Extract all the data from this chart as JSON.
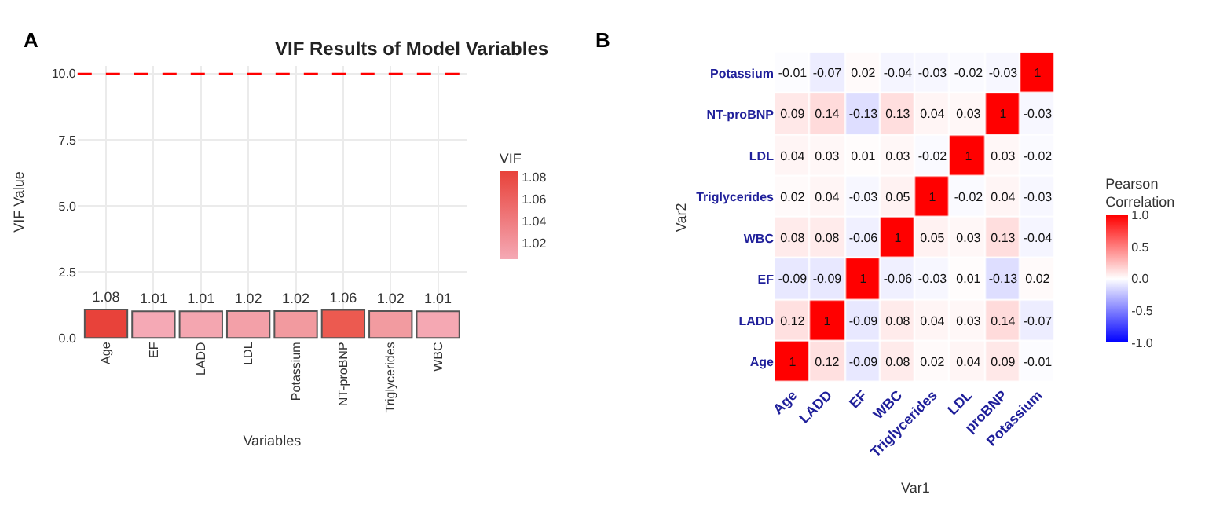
{
  "chart_data": [
    {
      "type": "bar",
      "title": "VIF Results of Model Variables",
      "xlabel": "Variables",
      "ylabel": "VIF Value",
      "clabel": "VIF",
      "categories": [
        "Age",
        "EF",
        "LADD",
        "LDL",
        "Potassium",
        "NT-proBNP",
        "Triglycerides",
        "WBC"
      ],
      "values": [
        1.08,
        1.01,
        1.01,
        1.02,
        1.02,
        1.06,
        1.02,
        1.01
      ],
      "colors": [
        "#e8423a",
        "#f5a9b5",
        "#f4a6b0",
        "#f3a0a8",
        "#f29a9f",
        "#ec5a50",
        "#f29ba0",
        "#f5a8b3"
      ],
      "clim": [
        1.005,
        1.085
      ],
      "cticks": [
        1.02,
        1.04,
        1.06,
        1.08
      ],
      "ylim": [
        0,
        10.3
      ],
      "yticks": [
        {
          "value": 0,
          "label": "0.0"
        },
        {
          "value": 2.5,
          "label": "2.5"
        },
        {
          "value": 5,
          "label": "5.0"
        },
        {
          "value": 7.5,
          "label": "7.5"
        },
        {
          "value": 10,
          "label": "10.0"
        }
      ],
      "ref_lines": [
        {
          "axis": "y",
          "value": 10,
          "color": "#ff0000",
          "line_style": "dashed"
        }
      ],
      "data_labels": true,
      "grid": true,
      "legend": false,
      "annotations": [
        "A"
      ]
    },
    {
      "type": "heatmap",
      "xlabel": "Var1",
      "ylabel": "Var2",
      "clabel": "Pearson Correlation",
      "categories": [
        "Age",
        "LADD",
        "EF",
        "WBC",
        "Triglycerides",
        "LDL",
        "proBNP",
        "Potassium"
      ],
      "y_categories": [
        "Potassium",
        "NT-proBNP",
        "LDL",
        "Triglycerides",
        "WBC",
        "EF",
        "LADD",
        "Age"
      ],
      "cells": [
        [
          -0.01,
          -0.07,
          0.02,
          -0.04,
          -0.03,
          -0.02,
          -0.03,
          1
        ],
        [
          0.09,
          0.14,
          -0.13,
          0.13,
          0.04,
          0.03,
          1,
          -0.03
        ],
        [
          0.04,
          0.03,
          0.01,
          0.03,
          -0.02,
          1,
          0.03,
          -0.02
        ],
        [
          0.02,
          0.04,
          -0.03,
          0.05,
          1,
          -0.02,
          0.04,
          -0.03
        ],
        [
          0.08,
          0.08,
          -0.06,
          1,
          0.05,
          0.03,
          0.13,
          -0.04
        ],
        [
          -0.09,
          -0.09,
          1,
          -0.06,
          -0.03,
          0.01,
          -0.13,
          0.02
        ],
        [
          0.12,
          1,
          -0.09,
          0.08,
          0.04,
          0.03,
          0.14,
          -0.07
        ],
        [
          1,
          0.12,
          -0.09,
          0.08,
          0.02,
          0.04,
          0.09,
          -0.01
        ]
      ],
      "colors": [
        "#0000ff",
        "#ffffff",
        "#ff0000"
      ],
      "clim": [
        -1,
        1
      ],
      "cticks": [
        {
          "value": -1,
          "label": "-1.0"
        },
        {
          "value": -0.5,
          "label": "-0.5"
        },
        {
          "value": 0,
          "label": "0.0"
        },
        {
          "value": 0.5,
          "label": "0.5"
        },
        {
          "value": 1,
          "label": "1.0"
        }
      ],
      "data_labels": true,
      "annotations": [
        "B"
      ]
    }
  ]
}
